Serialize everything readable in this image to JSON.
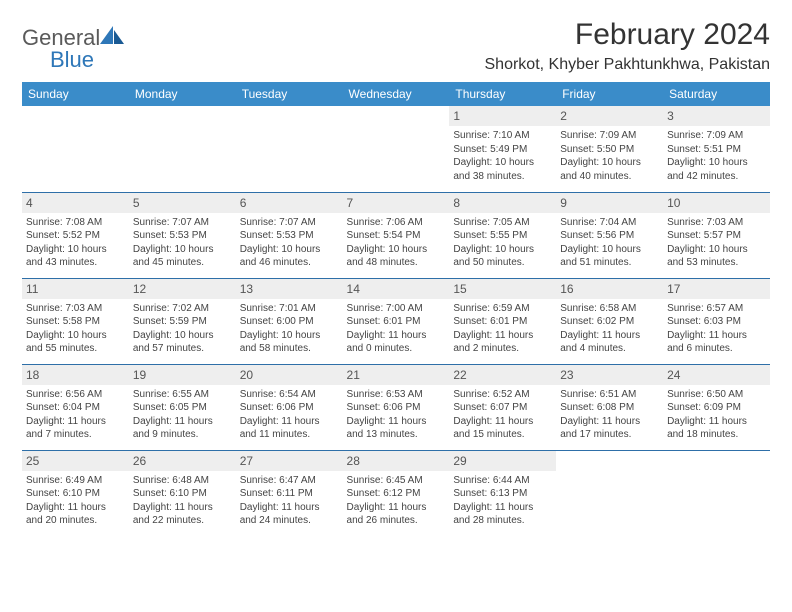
{
  "brand": {
    "part1": "General",
    "part2": "Blue"
  },
  "title": "February 2024",
  "location": "Shorkot, Khyber Pakhtunkhwa, Pakistan",
  "colors": {
    "header_bg": "#3a8cc9",
    "header_text": "#ffffff",
    "row_divider": "#2e6fa8",
    "daynum_bg": "#eeeeee",
    "text": "#444444",
    "brand_gray": "#5a5a5a",
    "brand_blue": "#2e77b8"
  },
  "weekdays": [
    "Sunday",
    "Monday",
    "Tuesday",
    "Wednesday",
    "Thursday",
    "Friday",
    "Saturday"
  ],
  "weeks": [
    [
      null,
      null,
      null,
      null,
      {
        "n": "1",
        "sr": "Sunrise: 7:10 AM",
        "ss": "Sunset: 5:49 PM",
        "dl": "Daylight: 10 hours and 38 minutes."
      },
      {
        "n": "2",
        "sr": "Sunrise: 7:09 AM",
        "ss": "Sunset: 5:50 PM",
        "dl": "Daylight: 10 hours and 40 minutes."
      },
      {
        "n": "3",
        "sr": "Sunrise: 7:09 AM",
        "ss": "Sunset: 5:51 PM",
        "dl": "Daylight: 10 hours and 42 minutes."
      }
    ],
    [
      {
        "n": "4",
        "sr": "Sunrise: 7:08 AM",
        "ss": "Sunset: 5:52 PM",
        "dl": "Daylight: 10 hours and 43 minutes."
      },
      {
        "n": "5",
        "sr": "Sunrise: 7:07 AM",
        "ss": "Sunset: 5:53 PM",
        "dl": "Daylight: 10 hours and 45 minutes."
      },
      {
        "n": "6",
        "sr": "Sunrise: 7:07 AM",
        "ss": "Sunset: 5:53 PM",
        "dl": "Daylight: 10 hours and 46 minutes."
      },
      {
        "n": "7",
        "sr": "Sunrise: 7:06 AM",
        "ss": "Sunset: 5:54 PM",
        "dl": "Daylight: 10 hours and 48 minutes."
      },
      {
        "n": "8",
        "sr": "Sunrise: 7:05 AM",
        "ss": "Sunset: 5:55 PM",
        "dl": "Daylight: 10 hours and 50 minutes."
      },
      {
        "n": "9",
        "sr": "Sunrise: 7:04 AM",
        "ss": "Sunset: 5:56 PM",
        "dl": "Daylight: 10 hours and 51 minutes."
      },
      {
        "n": "10",
        "sr": "Sunrise: 7:03 AM",
        "ss": "Sunset: 5:57 PM",
        "dl": "Daylight: 10 hours and 53 minutes."
      }
    ],
    [
      {
        "n": "11",
        "sr": "Sunrise: 7:03 AM",
        "ss": "Sunset: 5:58 PM",
        "dl": "Daylight: 10 hours and 55 minutes."
      },
      {
        "n": "12",
        "sr": "Sunrise: 7:02 AM",
        "ss": "Sunset: 5:59 PM",
        "dl": "Daylight: 10 hours and 57 minutes."
      },
      {
        "n": "13",
        "sr": "Sunrise: 7:01 AM",
        "ss": "Sunset: 6:00 PM",
        "dl": "Daylight: 10 hours and 58 minutes."
      },
      {
        "n": "14",
        "sr": "Sunrise: 7:00 AM",
        "ss": "Sunset: 6:01 PM",
        "dl": "Daylight: 11 hours and 0 minutes."
      },
      {
        "n": "15",
        "sr": "Sunrise: 6:59 AM",
        "ss": "Sunset: 6:01 PM",
        "dl": "Daylight: 11 hours and 2 minutes."
      },
      {
        "n": "16",
        "sr": "Sunrise: 6:58 AM",
        "ss": "Sunset: 6:02 PM",
        "dl": "Daylight: 11 hours and 4 minutes."
      },
      {
        "n": "17",
        "sr": "Sunrise: 6:57 AM",
        "ss": "Sunset: 6:03 PM",
        "dl": "Daylight: 11 hours and 6 minutes."
      }
    ],
    [
      {
        "n": "18",
        "sr": "Sunrise: 6:56 AM",
        "ss": "Sunset: 6:04 PM",
        "dl": "Daylight: 11 hours and 7 minutes."
      },
      {
        "n": "19",
        "sr": "Sunrise: 6:55 AM",
        "ss": "Sunset: 6:05 PM",
        "dl": "Daylight: 11 hours and 9 minutes."
      },
      {
        "n": "20",
        "sr": "Sunrise: 6:54 AM",
        "ss": "Sunset: 6:06 PM",
        "dl": "Daylight: 11 hours and 11 minutes."
      },
      {
        "n": "21",
        "sr": "Sunrise: 6:53 AM",
        "ss": "Sunset: 6:06 PM",
        "dl": "Daylight: 11 hours and 13 minutes."
      },
      {
        "n": "22",
        "sr": "Sunrise: 6:52 AM",
        "ss": "Sunset: 6:07 PM",
        "dl": "Daylight: 11 hours and 15 minutes."
      },
      {
        "n": "23",
        "sr": "Sunrise: 6:51 AM",
        "ss": "Sunset: 6:08 PM",
        "dl": "Daylight: 11 hours and 17 minutes."
      },
      {
        "n": "24",
        "sr": "Sunrise: 6:50 AM",
        "ss": "Sunset: 6:09 PM",
        "dl": "Daylight: 11 hours and 18 minutes."
      }
    ],
    [
      {
        "n": "25",
        "sr": "Sunrise: 6:49 AM",
        "ss": "Sunset: 6:10 PM",
        "dl": "Daylight: 11 hours and 20 minutes."
      },
      {
        "n": "26",
        "sr": "Sunrise: 6:48 AM",
        "ss": "Sunset: 6:10 PM",
        "dl": "Daylight: 11 hours and 22 minutes."
      },
      {
        "n": "27",
        "sr": "Sunrise: 6:47 AM",
        "ss": "Sunset: 6:11 PM",
        "dl": "Daylight: 11 hours and 24 minutes."
      },
      {
        "n": "28",
        "sr": "Sunrise: 6:45 AM",
        "ss": "Sunset: 6:12 PM",
        "dl": "Daylight: 11 hours and 26 minutes."
      },
      {
        "n": "29",
        "sr": "Sunrise: 6:44 AM",
        "ss": "Sunset: 6:13 PM",
        "dl": "Daylight: 11 hours and 28 minutes."
      },
      null,
      null
    ]
  ]
}
